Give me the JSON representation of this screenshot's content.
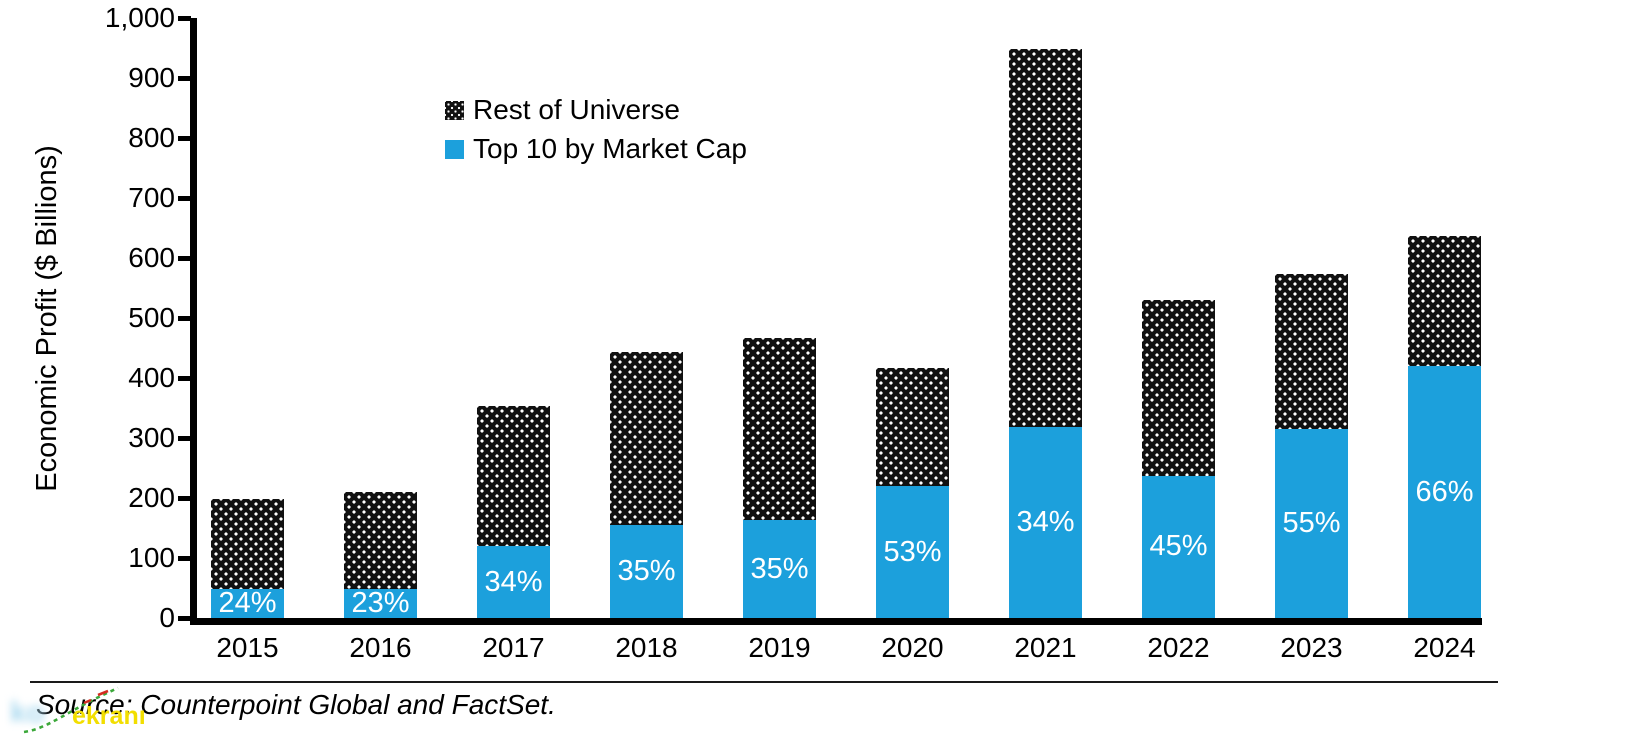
{
  "chart_data": {
    "type": "bar",
    "stacked": true,
    "ylabel": "Economic Profit ($ Billions)",
    "ylim": [
      0,
      1000
    ],
    "grid": false,
    "legend_position": "inside-top-left",
    "yticks": [
      {
        "value": 1000,
        "label": "1,000"
      },
      {
        "value": 900,
        "label": "900"
      },
      {
        "value": 800,
        "label": "800"
      },
      {
        "value": 700,
        "label": "700"
      },
      {
        "value": 600,
        "label": "600"
      },
      {
        "value": 500,
        "label": "500"
      },
      {
        "value": 400,
        "label": "400"
      },
      {
        "value": 300,
        "label": "300"
      },
      {
        "value": 200,
        "label": "200"
      },
      {
        "value": 100,
        "label": "100"
      },
      {
        "value": 0,
        "label": "0"
      }
    ],
    "categories": [
      "2015",
      "2016",
      "2017",
      "2018",
      "2019",
      "2020",
      "2021",
      "2022",
      "2023",
      "2024"
    ],
    "series": [
      {
        "name": "Rest of Universe",
        "style": "black-with-white-dots",
        "color": "#111111",
        "values": [
          150,
          162,
          233,
          288,
          304,
          197,
          630,
          293,
          258,
          216
        ]
      },
      {
        "name": "Top 10 by Market Cap",
        "style": "solid",
        "color": "#1CA0DC",
        "values": [
          48,
          48,
          120,
          155,
          163,
          220,
          318,
          237,
          315,
          420
        ]
      }
    ],
    "bar_labels": [
      "24%",
      "23%",
      "34%",
      "35%",
      "35%",
      "53%",
      "34%",
      "45%",
      "55%",
      "66%"
    ],
    "bar_label_color": "#FFFFFF"
  },
  "source_note": "Source: Counterpoint Global and FactSet.",
  "watermark": {
    "text": "ekranı",
    "text_color": "#F2DE00",
    "blob_color": "#A9D9EF",
    "line_color": "#3BA83A",
    "accent_color": "#D42B20"
  }
}
